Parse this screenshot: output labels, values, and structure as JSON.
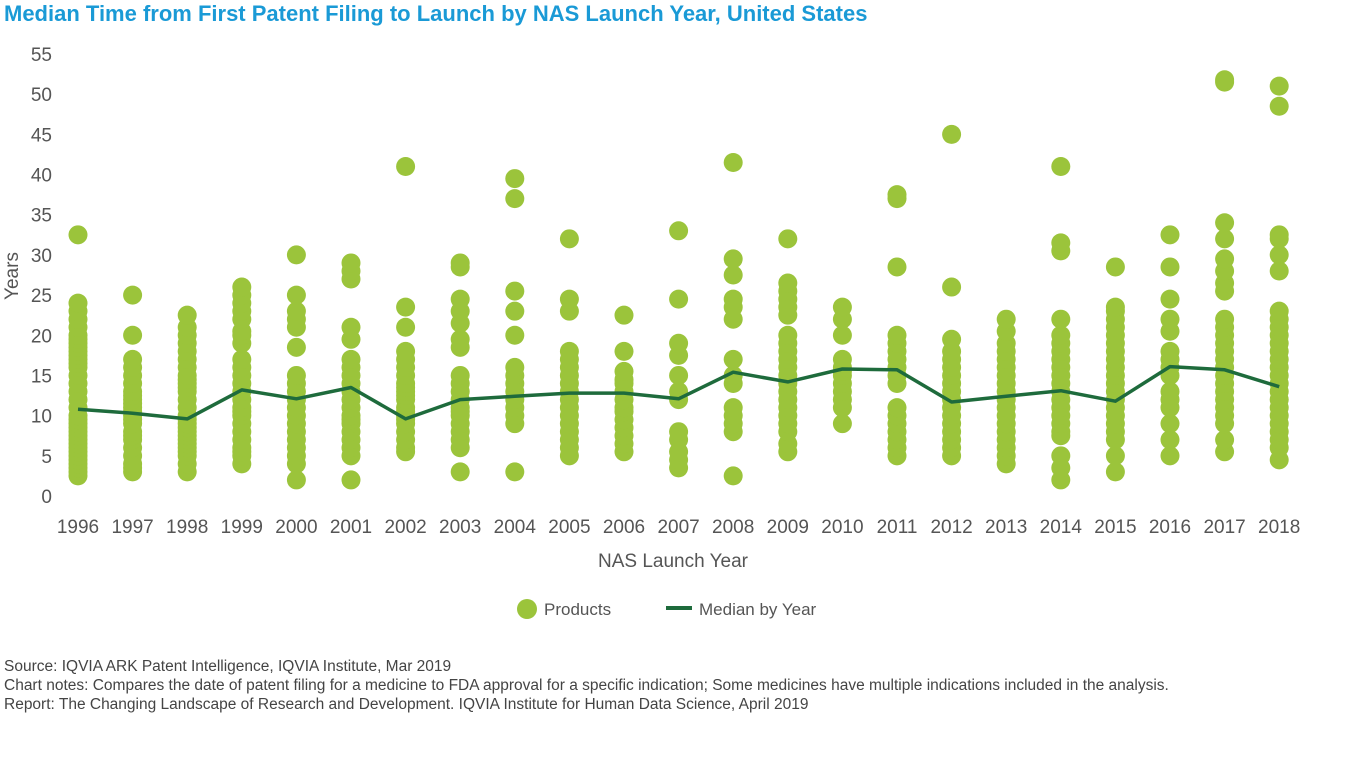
{
  "title": "Median Time from First Patent Filing to Launch by NAS Launch Year, United States",
  "chart_data": {
    "type": "scatter",
    "title": "Median Time from First Patent Filing to Launch by NAS Launch Year, United States",
    "xlabel": "NAS Launch Year",
    "ylabel": "Years",
    "ylim": [
      0,
      55
    ],
    "yticks": [
      "0",
      "5",
      "10",
      "15",
      "20",
      "25",
      "30",
      "35",
      "40",
      "45",
      "50",
      "55"
    ],
    "categories": [
      "1996",
      "1997",
      "1998",
      "1999",
      "2000",
      "2001",
      "2002",
      "2003",
      "2004",
      "2005",
      "2006",
      "2007",
      "2008",
      "2009",
      "2010",
      "2011",
      "2012",
      "2013",
      "2014",
      "2015",
      "2016",
      "2017",
      "2018"
    ],
    "legend_position": "bottom",
    "grid": false,
    "series": [
      {
        "name": "Products",
        "type": "scatter",
        "color": "#9bc43b",
        "points": [
          [
            [
              2.5,
              3,
              3.5,
              4,
              4.5,
              5,
              5.5,
              6,
              6.5,
              7,
              7.5,
              8,
              8.5,
              9,
              9.5,
              10,
              11,
              12,
              13,
              14,
              15,
              16,
              16.5,
              17,
              17.5,
              18,
              18.5,
              19,
              19.5,
              20,
              21,
              22,
              23,
              24,
              32.5
            ]
          ],
          [
            [
              3,
              3.5,
              4,
              5,
              6,
              7,
              7.5,
              8,
              9,
              9.5,
              10,
              10.5,
              11,
              11.5,
              12,
              12.5,
              13,
              14,
              15,
              16,
              17,
              20,
              25
            ]
          ],
          [
            [
              3,
              4,
              5,
              5.5,
              6,
              6.5,
              7,
              7.5,
              8,
              8.5,
              9,
              9.5,
              10,
              11,
              12,
              13,
              13.5,
              14,
              14.5,
              15,
              16,
              17,
              18,
              19,
              20,
              21,
              22.5
            ]
          ],
          [
            [
              4,
              5,
              5.5,
              6,
              7,
              8,
              9,
              10,
              10.5,
              11,
              12,
              13,
              14,
              15,
              16,
              17,
              19,
              20,
              20.5,
              22,
              23,
              24,
              25,
              26
            ]
          ],
          [
            [
              2,
              4,
              5,
              6,
              7,
              8,
              9,
              10,
              11,
              12,
              13,
              14,
              15,
              18.5,
              21,
              22,
              23,
              25,
              30
            ]
          ],
          [
            [
              2,
              5,
              6,
              7,
              8,
              9,
              9.5,
              10,
              11,
              12,
              13,
              14,
              15,
              16,
              17,
              19.5,
              21,
              27,
              28,
              29
            ]
          ],
          [
            [
              5.5,
              6,
              7,
              8,
              9,
              9.5,
              10,
              10.5,
              11,
              12,
              12.5,
              13,
              13.5,
              14,
              15,
              16,
              17,
              18,
              21,
              23.5,
              41
            ]
          ],
          [
            [
              3,
              6,
              7,
              8,
              9,
              10,
              10.5,
              11,
              12,
              13,
              14,
              15,
              18.5,
              19.5,
              21.5,
              23,
              24.5,
              28.5,
              29
            ]
          ],
          [
            [
              3,
              9,
              10,
              11,
              12,
              13,
              14,
              15,
              16,
              20,
              23,
              25.5,
              37,
              39.5
            ]
          ],
          [
            [
              5,
              6,
              7,
              8,
              9,
              10,
              11,
              12,
              13,
              14,
              15,
              16,
              17,
              18,
              23,
              24.5,
              32
            ]
          ],
          [
            [
              5.5,
              6.5,
              7.5,
              8.5,
              9.5,
              10.5,
              11,
              12,
              13,
              14,
              14.5,
              15.5,
              18,
              22.5
            ]
          ],
          [
            [
              3.5,
              4.5,
              5.5,
              7,
              8,
              12,
              13,
              15,
              17.5,
              19,
              24.5,
              33
            ]
          ],
          [
            [
              2.5,
              8,
              9,
              10,
              11,
              14,
              15,
              17,
              22,
              23.5,
              24.5,
              27.5,
              29.5,
              41.5
            ]
          ],
          [
            [
              5.5,
              6.5,
              8,
              9,
              10,
              11,
              12,
              13,
              14,
              15,
              16,
              17,
              18,
              19,
              20,
              22.5,
              23.5,
              24.5,
              25.5,
              26.5,
              32
            ]
          ],
          [
            [
              9,
              11,
              12,
              13,
              14,
              15,
              15.5,
              16,
              17,
              20,
              22,
              23.5
            ]
          ],
          [
            [
              5,
              6,
              7,
              8,
              9,
              10,
              11,
              14,
              15,
              16,
              17,
              18,
              19,
              20,
              28.5,
              37,
              37.5
            ]
          ],
          [
            [
              5,
              6,
              7,
              8,
              9,
              10,
              11,
              12,
              13,
              14,
              15,
              16,
              17,
              18,
              19.5,
              26,
              45
            ]
          ],
          [
            [
              4,
              5,
              6,
              7,
              8,
              9,
              10,
              11,
              12,
              13,
              14,
              15,
              16,
              17,
              18,
              19,
              20.5,
              22
            ]
          ],
          [
            [
              2,
              3.5,
              5,
              7.5,
              8,
              9,
              10,
              11,
              12,
              13,
              14,
              15,
              16,
              17,
              18,
              19,
              20,
              22,
              30.5,
              31.5,
              41
            ]
          ],
          [
            [
              3,
              5,
              7,
              8,
              9,
              10,
              11,
              12,
              13,
              14,
              15,
              16,
              17,
              18,
              19,
              20,
              21,
              22,
              23,
              23.5,
              28.5
            ]
          ],
          [
            [
              5,
              7,
              9,
              11,
              12,
              13,
              15,
              16,
              17,
              18,
              20.5,
              22,
              24.5,
              28.5,
              32.5
            ]
          ],
          [
            [
              5.5,
              7,
              9,
              10,
              11,
              12,
              13,
              14,
              15,
              16,
              17,
              18,
              19,
              20,
              21,
              22,
              25.5,
              26.5,
              28,
              29.5,
              32,
              34,
              51.5,
              51.8
            ]
          ],
          [
            [
              4.5,
              6,
              7,
              8,
              9,
              10,
              11,
              12,
              13,
              14,
              15,
              16,
              17,
              18,
              19,
              20,
              21,
              22,
              23,
              28,
              30,
              32,
              32.5,
              48.5,
              51
            ]
          ]
        ]
      },
      {
        "name": "Median by Year",
        "type": "line",
        "color": "#1e6b3c",
        "values": [
          10.8,
          10.3,
          9.6,
          13.2,
          12.1,
          13.5,
          9.6,
          12.0,
          12.4,
          12.8,
          12.8,
          12.1,
          15.4,
          14.2,
          15.8,
          15.7,
          11.7,
          12.4,
          13.1,
          11.8,
          16.1,
          15.7,
          13.6
        ]
      }
    ]
  },
  "legend": {
    "products": "Products",
    "median": "Median by Year"
  },
  "notes": {
    "source": "Source: IQVIA ARK Patent Intelligence, IQVIA Institute, Mar 2019",
    "chart_notes": "Chart notes: Compares the date of patent filing for a medicine to FDA approval for a specific indication; Some medicines have multiple indications included in the analysis.",
    "report": "Report: The Changing Landscape of Research and Development. IQVIA Institute for Human Data Science, April 2019"
  }
}
